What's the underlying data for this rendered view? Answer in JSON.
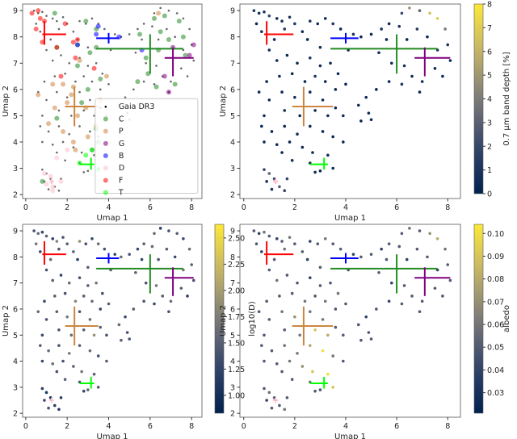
{
  "chart_data": [
    {
      "panel": "class",
      "type": "scatter",
      "xlabel": "Umap 1",
      "ylabel": "Umap 2",
      "xlim": [
        -0.15,
        8.5
      ],
      "ylim": [
        1.85,
        9.25
      ],
      "xticks": [
        0,
        2,
        4,
        6,
        8
      ],
      "yticks": [
        2,
        3,
        4,
        5,
        6,
        7,
        8,
        9
      ],
      "legend_position": "lower-right",
      "legend": [
        "Gaia DR3",
        "C",
        "P",
        "G",
        "B",
        "D",
        "F",
        "T"
      ]
    },
    {
      "panel": "band",
      "type": "scatter",
      "xlabel": "Umap 1",
      "ylabel": "Umap 2",
      "xlim": [
        -0.15,
        8.5
      ],
      "ylim": [
        1.85,
        9.25
      ],
      "xticks": [
        0,
        2,
        4,
        6,
        8
      ],
      "yticks": [
        2,
        3,
        4,
        5,
        6,
        7,
        8,
        9
      ],
      "colorbar": {
        "label": "0.7 μm band depth [%]",
        "range": [
          0,
          8
        ],
        "ticks": [
          "0",
          "1",
          "2",
          "3",
          "4",
          "5",
          "6",
          "7",
          "8"
        ],
        "tick_values": [
          0,
          1,
          2,
          3,
          4,
          5,
          6,
          7,
          8
        ]
      }
    },
    {
      "panel": "logD",
      "type": "scatter",
      "xlabel": "Umap 1",
      "ylabel": "Umap 2",
      "xlim": [
        -0.15,
        8.5
      ],
      "ylim": [
        1.85,
        9.25
      ],
      "xticks": [
        0,
        2,
        4,
        6,
        8
      ],
      "yticks": [
        2,
        3,
        4,
        5,
        6,
        7,
        8,
        9
      ],
      "colorbar": {
        "label": "log10(D)",
        "range": [
          0.83,
          2.63
        ],
        "ticks": [
          "1.00",
          "1.25",
          "1.50",
          "1.75",
          "2.00",
          "2.25",
          "2.50"
        ],
        "tick_values": [
          1,
          1.25,
          1.5,
          1.75,
          2,
          2.25,
          2.5
        ]
      }
    },
    {
      "panel": "albedo",
      "type": "scatter",
      "xlabel": "Umap 1",
      "ylabel": "Umap 2",
      "xlim": [
        -0.15,
        8.5
      ],
      "ylim": [
        1.85,
        9.25
      ],
      "xticks": [
        0,
        2,
        4,
        6,
        8
      ],
      "yticks": [
        2,
        3,
        4,
        5,
        6,
        7,
        8,
        9
      ],
      "colorbar": {
        "label": "albedo",
        "range": [
          0.021,
          0.104
        ],
        "ticks": [
          "0.03",
          "0.04",
          "0.05",
          "0.06",
          "0.07",
          "0.08",
          "0.09",
          "0.10"
        ],
        "tick_values": [
          0.03,
          0.04,
          0.05,
          0.06,
          0.07,
          0.08,
          0.09,
          0.1
        ]
      }
    }
  ],
  "colormap": [
    "#00224e",
    "#35456c",
    "#7c7b78",
    "#c3b369",
    "#fee838"
  ],
  "gaia_fields": [
    "umap1",
    "umap2",
    "band_depth",
    "log10D",
    "albedo"
  ],
  "gaia_points": [
    [
      0.4,
      9.0,
      1,
      1.4,
      0.05
    ],
    [
      0.6,
      8.9,
      0.5,
      1.6,
      0.04
    ],
    [
      0.8,
      8.95,
      1,
      1.3,
      0.06
    ],
    [
      1.0,
      8.8,
      2,
      1.5,
      0.05
    ],
    [
      1.3,
      8.7,
      0.5,
      1.2,
      0.04
    ],
    [
      1.5,
      8.6,
      1,
      1.8,
      0.05
    ],
    [
      1.8,
      8.75,
      0.8,
      1.4,
      0.06
    ],
    [
      2.0,
      8.5,
      1.2,
      1.5,
      0.05
    ],
    [
      0.5,
      8.5,
      0.5,
      1.7,
      0.05
    ],
    [
      0.7,
      8.2,
      1,
      1.3,
      0.04
    ],
    [
      1.2,
      7.9,
      0.6,
      1.6,
      0.05
    ],
    [
      1.6,
      8.3,
      1.5,
      1.4,
      0.06
    ],
    [
      2.3,
      8.2,
      0.5,
      1.5,
      0.05
    ],
    [
      2.6,
      8.6,
      1,
      1.9,
      0.04
    ],
    [
      2.9,
      8.5,
      0.8,
      1.4,
      0.05
    ],
    [
      3.2,
      8.7,
      0.5,
      1.3,
      0.06
    ],
    [
      3.5,
      8.5,
      1,
      1.6,
      0.05
    ],
    [
      2.5,
      7.9,
      0.4,
      1.2,
      0.04
    ],
    [
      3.0,
      7.6,
      0.6,
      1.5,
      0.05
    ],
    [
      3.8,
      8.3,
      0.5,
      1.4,
      0.05
    ],
    [
      4.3,
      8.1,
      1,
      1.3,
      0.04
    ],
    [
      4.6,
      8.0,
      0.5,
      1.6,
      0.05
    ],
    [
      4.1,
      7.5,
      0.3,
      1.5,
      0.05
    ],
    [
      5.0,
      8.1,
      0.5,
      1.4,
      0.05
    ],
    [
      5.4,
      8.3,
      1,
      1.3,
      0.04
    ],
    [
      5.7,
      8.5,
      0.5,
      1.5,
      0.05
    ],
    [
      6.2,
      8.9,
      2,
      1.6,
      0.05
    ],
    [
      6.5,
      9.1,
      5,
      1.2,
      0.06
    ],
    [
      6.9,
      9.0,
      3,
      1.4,
      0.05
    ],
    [
      7.3,
      8.9,
      6.5,
      1.5,
      0.07
    ],
    [
      7.6,
      8.7,
      7,
      1.3,
      0.08
    ],
    [
      7.9,
      8.3,
      4,
      1.6,
      0.06
    ],
    [
      8.0,
      7.7,
      1,
      1.5,
      0.05
    ],
    [
      8.1,
      7.1,
      0.5,
      1.4,
      0.05
    ],
    [
      7.6,
      7.5,
      1,
      1.7,
      0.04
    ],
    [
      7.2,
      8.0,
      0.5,
      1.3,
      0.05
    ],
    [
      6.8,
      8.3,
      1.5,
      1.5,
      0.05
    ],
    [
      6.4,
      7.9,
      0.5,
      1.4,
      0.04
    ],
    [
      6.1,
      8.4,
      1,
      1.6,
      0.05
    ],
    [
      5.6,
      7.9,
      0.4,
      1.3,
      0.05
    ],
    [
      5.3,
      7.4,
      0.5,
      1.5,
      0.05
    ],
    [
      5.8,
      7.0,
      0.6,
      1.4,
      0.04
    ],
    [
      6.3,
      6.9,
      1,
      1.7,
      0.05
    ],
    [
      6.6,
      6.5,
      0.5,
      1.5,
      0.05
    ],
    [
      6.2,
      6.2,
      1,
      1.3,
      0.05
    ],
    [
      5.7,
      6.3,
      0.5,
      1.4,
      0.04
    ],
    [
      7.0,
      6.3,
      0.8,
      1.6,
      0.05
    ],
    [
      7.5,
      6.8,
      0.4,
      1.5,
      0.05
    ],
    [
      7.8,
      6.5,
      0.5,
      1.2,
      0.05
    ],
    [
      6.9,
      5.9,
      0.5,
      1.4,
      0.05
    ],
    [
      5.2,
      6.0,
      0.4,
      1.5,
      0.05
    ],
    [
      4.8,
      5.7,
      0.5,
      1.3,
      0.04
    ],
    [
      4.5,
      5.4,
      0.6,
      1.6,
      0.05
    ],
    [
      4.9,
      5.1,
      0.5,
      1.4,
      0.05
    ],
    [
      4.6,
      4.8,
      0.3,
      1.5,
      0.05
    ],
    [
      5.0,
      4.85,
      0.4,
      1.4,
      0.05
    ],
    [
      1.0,
      7.5,
      0.5,
      1.4,
      0.05
    ],
    [
      1.3,
      7.1,
      0.6,
      1.5,
      0.06
    ],
    [
      1.7,
      7.3,
      0.4,
      1.3,
      0.05
    ],
    [
      2.1,
      7.0,
      0.5,
      1.6,
      0.05
    ],
    [
      2.6,
      7.2,
      1,
      1.4,
      0.04
    ],
    [
      3.0,
      6.9,
      0.6,
      1.5,
      0.05
    ],
    [
      3.4,
      7.0,
      0.5,
      1.7,
      0.05
    ],
    [
      3.7,
      6.6,
      0.5,
      1.4,
      0.06
    ],
    [
      4.0,
      6.2,
      0.4,
      1.5,
      0.05
    ],
    [
      3.6,
      6.0,
      0.5,
      1.3,
      0.05
    ],
    [
      3.2,
      6.3,
      0.6,
      1.6,
      0.06
    ],
    [
      2.8,
      6.5,
      1,
      1.5,
      0.05
    ],
    [
      2.4,
      6.3,
      0.5,
      1.8,
      0.06
    ],
    [
      1.9,
      6.6,
      0.4,
      1.4,
      0.05
    ],
    [
      1.4,
      6.5,
      0.5,
      1.5,
      0.05
    ],
    [
      0.9,
      6.3,
      0.6,
      1.3,
      0.05
    ],
    [
      0.6,
      5.9,
      0.5,
      1.6,
      0.05
    ],
    [
      1.0,
      5.6,
      0.4,
      1.4,
      0.05
    ],
    [
      1.5,
      5.9,
      0.5,
      1.5,
      0.06
    ],
    [
      2.0,
      5.7,
      0.6,
      1.7,
      0.07
    ],
    [
      2.6,
      5.9,
      0.5,
      1.4,
      0.06
    ],
    [
      3.1,
      5.6,
      0.5,
      1.6,
      0.06
    ],
    [
      3.6,
      5.3,
      0.4,
      1.5,
      0.05
    ],
    [
      3.9,
      5.0,
      0.5,
      1.4,
      0.05
    ],
    [
      3.3,
      5.0,
      0.6,
      1.9,
      0.08
    ],
    [
      2.8,
      5.2,
      0.5,
      1.5,
      0.09
    ],
    [
      2.2,
      5.0,
      0.4,
      1.6,
      0.06
    ],
    [
      1.6,
      5.2,
      0.5,
      1.4,
      0.05
    ],
    [
      0.8,
      5.0,
      0.6,
      1.3,
      0.05
    ],
    [
      0.7,
      4.6,
      0.5,
      1.5,
      0.05
    ],
    [
      1.1,
      4.4,
      0.4,
      1.6,
      0.05
    ],
    [
      1.6,
      4.6,
      0.5,
      1.4,
      0.06
    ],
    [
      2.1,
      4.3,
      0.6,
      1.7,
      0.06
    ],
    [
      2.6,
      4.6,
      0.5,
      1.5,
      0.08
    ],
    [
      3.1,
      4.4,
      0.4,
      1.6,
      0.1
    ],
    [
      3.5,
      4.2,
      0.5,
      1.4,
      0.06
    ],
    [
      3.9,
      4.0,
      0.5,
      1.5,
      0.05
    ],
    [
      0.8,
      4.0,
      0.6,
      1.3,
      0.05
    ],
    [
      1.3,
      3.9,
      0.5,
      1.6,
      0.05
    ],
    [
      1.8,
      4.0,
      0.5,
      1.4,
      0.06
    ],
    [
      2.3,
      3.8,
      0.4,
      1.5,
      0.07
    ],
    [
      2.7,
      3.6,
      0.5,
      1.7,
      0.09
    ],
    [
      3.3,
      3.5,
      0.6,
      1.5,
      0.1
    ],
    [
      2.6,
      3.2,
      0.5,
      1.4,
      0.06
    ],
    [
      3.0,
      2.9,
      0.4,
      1.6,
      0.05
    ],
    [
      3.5,
      3.0,
      0.5,
      1.5,
      0.09
    ],
    [
      2.8,
      2.85,
      0.4,
      1.3,
      0.05
    ],
    [
      1.9,
      3.3,
      0.5,
      1.5,
      0.05
    ],
    [
      1.5,
      3.6,
      0.4,
      1.4,
      0.05
    ],
    [
      0.8,
      2.95,
      2,
      1.2,
      0.05
    ],
    [
      1.0,
      2.8,
      3,
      1.1,
      0.06
    ],
    [
      1.2,
      2.6,
      2,
      1.0,
      0.05
    ],
    [
      0.9,
      2.5,
      1,
      1.3,
      0.04
    ],
    [
      1.4,
      2.3,
      3,
      1.2,
      0.05
    ],
    [
      1.6,
      2.15,
      2,
      1.1,
      0.06
    ],
    [
      1.1,
      2.2,
      1,
      1.4,
      0.05
    ],
    [
      1.7,
      2.6,
      2,
      1.2,
      0.05
    ]
  ],
  "classes": [
    {
      "name": "C",
      "color": "#228b22",
      "points": [
        [
          1.4,
          8.9
        ],
        [
          2.9,
          8.6
        ],
        [
          3.4,
          8.3
        ],
        [
          1.5,
          7.6
        ],
        [
          3.1,
          7.4
        ],
        [
          3.4,
          7.6
        ],
        [
          2.5,
          6.9
        ],
        [
          3.6,
          6.4
        ],
        [
          3.0,
          6.0
        ],
        [
          2.7,
          5.5
        ],
        [
          3.4,
          4.5
        ],
        [
          3.5,
          4.0
        ],
        [
          1.5,
          4.9
        ],
        [
          0.8,
          2.5
        ],
        [
          5.5,
          8.1
        ],
        [
          6.2,
          8.7
        ],
        [
          6.7,
          8.8
        ],
        [
          7.4,
          8.6
        ],
        [
          7.6,
          8.0
        ],
        [
          6.4,
          7.5
        ],
        [
          5.9,
          6.6
        ],
        [
          6.9,
          7.9
        ],
        [
          7.7,
          7.3
        ],
        [
          5.4,
          6.3
        ],
        [
          6.3,
          6.1
        ],
        [
          7.2,
          6.2
        ],
        [
          5.8,
          7.2
        ],
        [
          6.5,
          8.2
        ],
        [
          3.2,
          3.7
        ],
        [
          2.5,
          7.7
        ]
      ],
      "centroid": [
        6.0,
        7.55
      ],
      "xerr": [
        3.4,
        7.6
      ],
      "yerr": [
        6.6,
        8.1
      ]
    },
    {
      "name": "P",
      "color": "#cd853f",
      "points": [
        [
          2.3,
          6.1
        ],
        [
          1.3,
          6.2
        ],
        [
          2.0,
          5.5
        ],
        [
          2.5,
          5.0
        ],
        [
          2.9,
          5.3
        ],
        [
          1.4,
          5.3
        ],
        [
          1.1,
          4.7
        ],
        [
          1.8,
          4.4
        ],
        [
          2.3,
          4.0
        ],
        [
          2.4,
          3.7
        ],
        [
          3.0,
          4.2
        ],
        [
          3.4,
          4.6
        ],
        [
          3.6,
          5.6
        ],
        [
          3.9,
          6.5
        ],
        [
          2.6,
          7.1
        ],
        [
          0.6,
          5.8
        ],
        [
          6.4,
          8.9
        ],
        [
          1.8,
          6.2
        ],
        [
          2.2,
          5.8
        ]
      ],
      "centroid": [
        2.35,
        5.35
      ],
      "xerr": [
        1.9,
        3.5
      ],
      "yerr": [
        4.6,
        6.1
      ]
    },
    {
      "name": "G",
      "color": "#800080",
      "points": [
        [
          7.1,
          7.6
        ],
        [
          8.1,
          7.7
        ],
        [
          6.7,
          6.5
        ],
        [
          6.9,
          5.9
        ],
        [
          7.9,
          7.3
        ]
      ],
      "centroid": [
        7.1,
        7.2
      ],
      "xerr": [
        6.7,
        8.1
      ],
      "yerr": [
        6.5,
        7.6
      ]
    },
    {
      "name": "B",
      "color": "#0000ff",
      "points": [
        [
          3.4,
          8.1
        ],
        [
          3.5,
          8.4
        ],
        [
          2.5,
          7.7
        ],
        [
          4.5,
          8.0
        ],
        [
          5.6,
          7.5
        ]
      ],
      "centroid": [
        4.0,
        7.95
      ],
      "xerr": [
        3.4,
        4.5
      ],
      "yerr": [
        7.75,
        8.15
      ]
    },
    {
      "name": "D",
      "color": "#ffc0cb",
      "points": [
        [
          1.0,
          2.4
        ],
        [
          1.3,
          2.3
        ],
        [
          1.2,
          2.7
        ],
        [
          0.9,
          2.8
        ],
        [
          1.5,
          3.4
        ],
        [
          1.7,
          2.5
        ],
        [
          1.3,
          2.15
        ],
        [
          2.0,
          3.7
        ]
      ],
      "centroid": [
        1.25,
        2.5
      ],
      "xerr": [
        1.15,
        1.35
      ],
      "yerr": [
        2.4,
        2.6
      ]
    },
    {
      "name": "F",
      "color": "#ff0000",
      "points": [
        [
          0.3,
          8.9
        ],
        [
          0.6,
          9.0
        ],
        [
          0.9,
          8.6
        ],
        [
          0.5,
          8.3
        ],
        [
          0.8,
          7.8
        ],
        [
          1.9,
          8.5
        ],
        [
          1.5,
          7.6
        ],
        [
          2.3,
          7.8
        ],
        [
          2.5,
          7.9
        ],
        [
          2.4,
          7.2
        ],
        [
          1.7,
          6.5
        ],
        [
          3.3,
          6.8
        ],
        [
          0.7,
          8.7
        ]
      ],
      "centroid": [
        0.9,
        8.1
      ],
      "xerr": [
        0.8,
        1.95
      ],
      "yerr": [
        7.7,
        8.6
      ]
    },
    {
      "name": "T",
      "color": "#00ff00",
      "points": [
        [
          2.9,
          3.5
        ],
        [
          2.6,
          3.2
        ],
        [
          3.2,
          3.7
        ],
        [
          3.5,
          2.95
        ]
      ],
      "centroid": [
        3.15,
        3.15
      ],
      "xerr": [
        2.6,
        3.3
      ],
      "yerr": [
        2.95,
        3.4
      ]
    }
  ],
  "legend_labels": {
    "gaia": "Gaia DR3"
  }
}
